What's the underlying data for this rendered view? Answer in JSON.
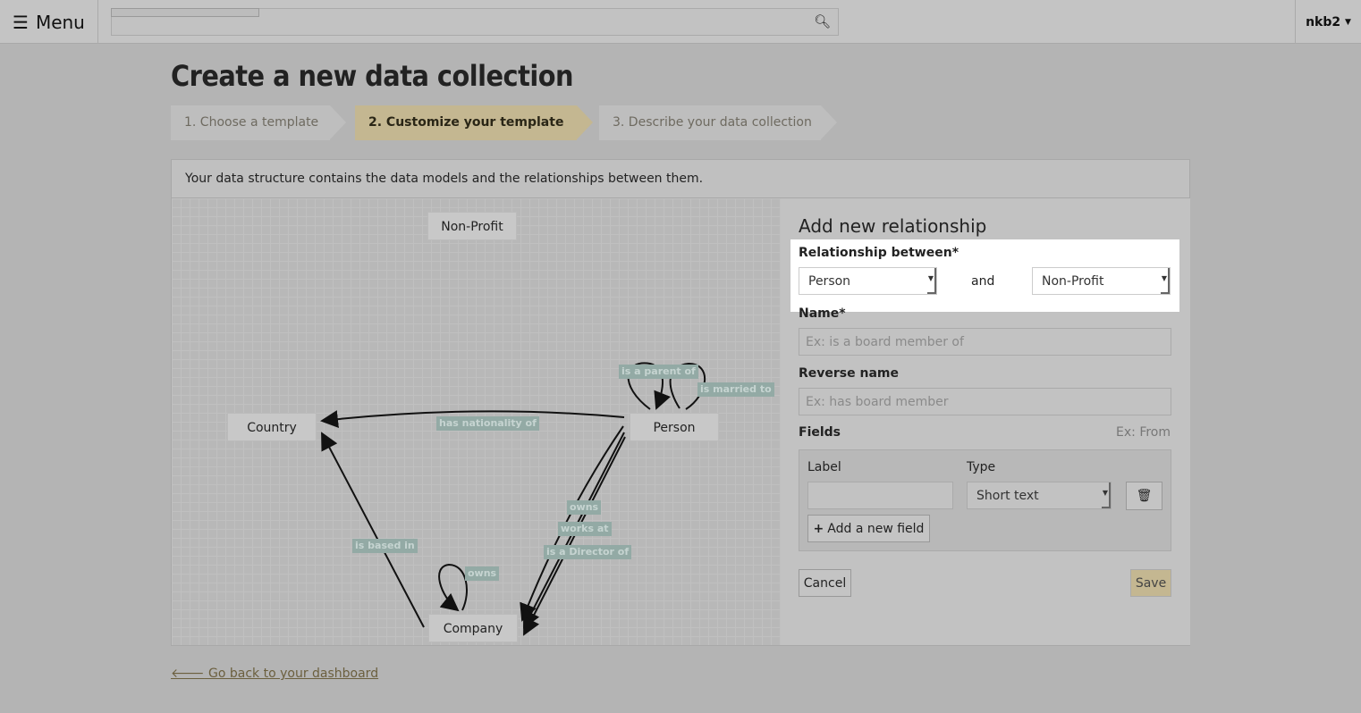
{
  "topbar": {
    "menu_label": "Menu",
    "menu_icon": "hamburger-icon",
    "search_icon": "search-icon",
    "user": "nkb2"
  },
  "page_title": "Create a new data collection",
  "steps": [
    {
      "label": "1. Choose a template"
    },
    {
      "label": "2. Customize your template",
      "active": true
    },
    {
      "label": "3. Describe your data collection"
    }
  ],
  "panel": {
    "description": "Your data structure contains the data models and the relationships between them."
  },
  "graph": {
    "nodes": [
      "Non-Profit",
      "Country",
      "Person",
      "Company"
    ],
    "edge_labels": {
      "parent": "is a parent of",
      "married": "is married to",
      "nationality": "has nationality of",
      "based": "is based in",
      "owns_self": "owns",
      "owns": "owns",
      "works": "works at",
      "director": "is a Director of"
    }
  },
  "form": {
    "title": "Add new relationship",
    "between_label": "Relationship between*",
    "from": "Person",
    "and": "and",
    "to": "Non-Profit",
    "name_label": "Name*",
    "name_placeholder": "Ex: is a board member of",
    "reverse_label": "Reverse name",
    "reverse_placeholder": "Ex: has board member",
    "fields_label": "Fields",
    "fields_hint": "Ex: From",
    "col_label": "Label",
    "col_type": "Type",
    "type_value": "Short text",
    "add_field": "Add a new field",
    "cancel": "Cancel",
    "save": "Save",
    "save_color": "#c4b791"
  },
  "back_link": "Go back to your dashboard"
}
